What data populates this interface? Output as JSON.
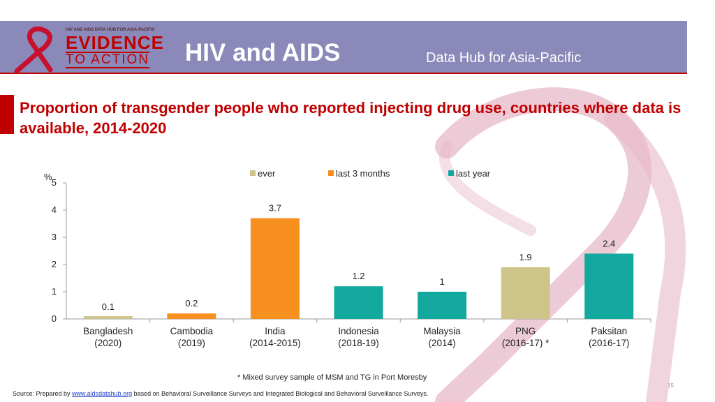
{
  "header": {
    "logo_top": "HIV AND AIDS DATA HUB FOR ASIA-PACIFIC",
    "logo_main": "EVIDENCE",
    "logo_sub": "TO ACTION",
    "title": "HIV and AIDS",
    "subtitle": "Data Hub for Asia-Pacific"
  },
  "colors": {
    "header_bg": "#8a89b9",
    "accent": "#c00000",
    "ever": "#cec48a",
    "last3": "#f7901e",
    "lastyear": "#13a89e"
  },
  "chart_data": {
    "type": "bar",
    "title": "Proportion of transgender people who reported injecting drug use, countries where data is available, 2014-2020",
    "ylabel": "%",
    "ylim": [
      0,
      5
    ],
    "yticks": [
      0,
      1,
      2,
      3,
      4,
      5
    ],
    "legend_position": "top",
    "grid": false,
    "series": [
      {
        "name": "ever",
        "color": "#cec48a"
      },
      {
        "name": "last 3 months",
        "color": "#f7901e"
      },
      {
        "name": "last year",
        "color": "#13a89e"
      }
    ],
    "bars": [
      {
        "category": "Bangladesh",
        "period": "(2020)",
        "value": 0.1,
        "label": "0.1",
        "series": 0
      },
      {
        "category": "Cambodia",
        "period": "(2019)",
        "value": 0.2,
        "label": "0.2",
        "series": 1
      },
      {
        "category": "India",
        "period": "(2014-2015)",
        "value": 3.7,
        "label": "3.7",
        "series": 1
      },
      {
        "category": "Indonesia",
        "period": "(2018-19)",
        "value": 1.2,
        "label": "1.2",
        "series": 2
      },
      {
        "category": "Malaysia",
        "period": "(2014)",
        "value": 1,
        "label": "1",
        "series": 2
      },
      {
        "category": "PNG",
        "period": "(2016-17) *",
        "value": 1.9,
        "label": "1.9",
        "series": 0
      },
      {
        "category": "Paksitan",
        "period": "(2016-17)",
        "value": 2.4,
        "label": "2.4",
        "series": 2
      }
    ]
  },
  "footnote": "*  Mixed survey sample of MSM and TG in Port Moresby",
  "source": {
    "prefix": "Source: Prepared by ",
    "link": "www.aidsdatahub.org",
    "suffix": " based on Behavioral Surveillance Surveys and Integrated Biological and Behavioral Surveillance Surveys."
  },
  "page_number": "15"
}
